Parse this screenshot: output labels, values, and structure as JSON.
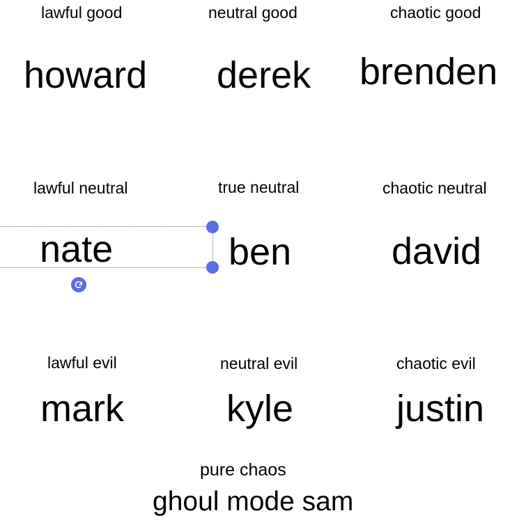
{
  "grid": [
    {
      "label": "lawful good",
      "name": "howard"
    },
    {
      "label": "neutral good",
      "name": "derek"
    },
    {
      "label": "chaotic good",
      "name": "brenden"
    },
    {
      "label": "lawful neutral",
      "name": "nate"
    },
    {
      "label": "true neutral",
      "name": "ben"
    },
    {
      "label": "chaotic neutral",
      "name": "david"
    },
    {
      "label": "lawful evil",
      "name": "mark"
    },
    {
      "label": "neutral evil",
      "name": "kyle"
    },
    {
      "label": "chaotic evil",
      "name": "justin"
    }
  ],
  "extra": {
    "label": "pure chaos",
    "name": "ghoul mode sam"
  },
  "selection": {
    "icon": "rotate-icon",
    "handle_color": "#5b6ee1"
  }
}
